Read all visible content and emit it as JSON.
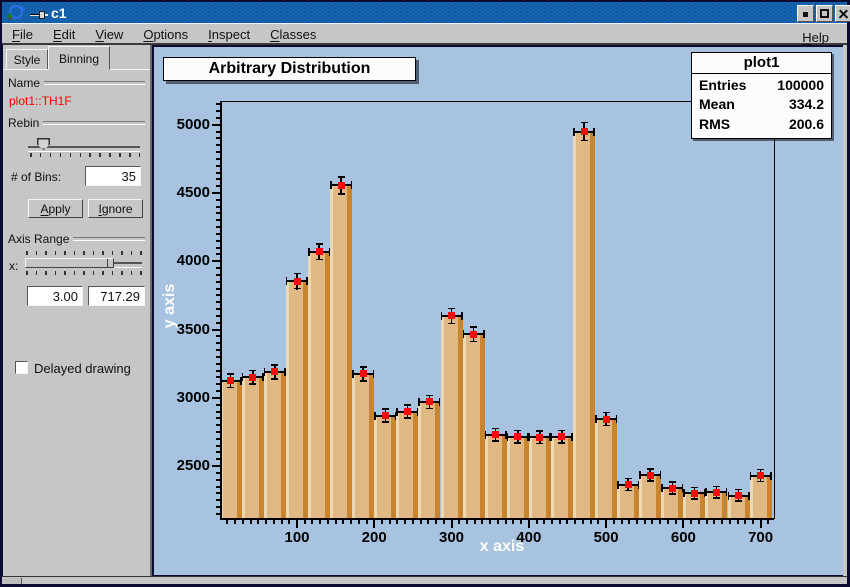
{
  "window": {
    "title": "c1",
    "controls": [
      {
        "name": "minimize"
      },
      {
        "name": "maximize"
      },
      {
        "name": "close"
      }
    ]
  },
  "menu": {
    "items": [
      "File",
      "Edit",
      "View",
      "Options",
      "Inspect",
      "Classes"
    ],
    "right_item": "Help"
  },
  "panel": {
    "tabs": [
      {
        "label": "Style",
        "active": false
      },
      {
        "label": "Binning",
        "active": true
      }
    ],
    "name_group": {
      "label": "Name",
      "value": "plot1::TH1F",
      "value_color": "#ff0000"
    },
    "rebin_group": {
      "label": "Rebin",
      "slider_position": 0.18
    },
    "bins_field": {
      "label": "# of Bins:",
      "value": "35"
    },
    "apply_button": "Apply",
    "ignore_button": "Ignore",
    "axis_range_group": {
      "label": "Axis Range",
      "x_label": "x:",
      "range_start_fraction": 0.0,
      "range_end_fraction": 0.76,
      "min_value": "3.00",
      "max_value": "717.29"
    },
    "delayed_drawing": {
      "label": "Delayed drawing",
      "checked": false
    }
  },
  "chart_data": {
    "type": "bar",
    "title": "Arbitrary Distribution",
    "xlabel": "x axis",
    "ylabel": "y axis",
    "xlim": [
      3,
      717.29
    ],
    "ylim": [
      2120,
      5166
    ],
    "x_major_ticks": [
      100,
      200,
      300,
      400,
      500,
      600,
      700
    ],
    "x_minor_step": 10,
    "y_major_ticks": [
      2500,
      3000,
      3500,
      4000,
      4500,
      5000
    ],
    "y_minor_step": 50,
    "grid": false,
    "legend": false,
    "bin_start": 0,
    "bin_width": 28.5714,
    "values": [
      3125,
      3150,
      3190,
      3855,
      4070,
      4555,
      3175,
      2870,
      2900,
      2970,
      3600,
      3465,
      2730,
      2715,
      2710,
      2715,
      4950,
      2845,
      2365,
      2435,
      2340,
      2300,
      2310,
      2285,
      2430
    ],
    "error_bars": "sqrt",
    "marker": "red-filled-square",
    "colors": {
      "canvas_background": "#a8c3e0",
      "bar_light": "#ecd9b4",
      "bar_main": "#dfb884",
      "bar_dark": "#c8842e",
      "marker": "#f20c0c",
      "axis_text": "#000000",
      "axis_title_text": "#ffffff"
    },
    "stats_box": {
      "title": "plot1",
      "rows": [
        {
          "label": "Entries",
          "value": "100000"
        },
        {
          "label": "Mean",
          "value": "334.2"
        },
        {
          "label": "RMS",
          "value": "200.6"
        }
      ]
    }
  }
}
